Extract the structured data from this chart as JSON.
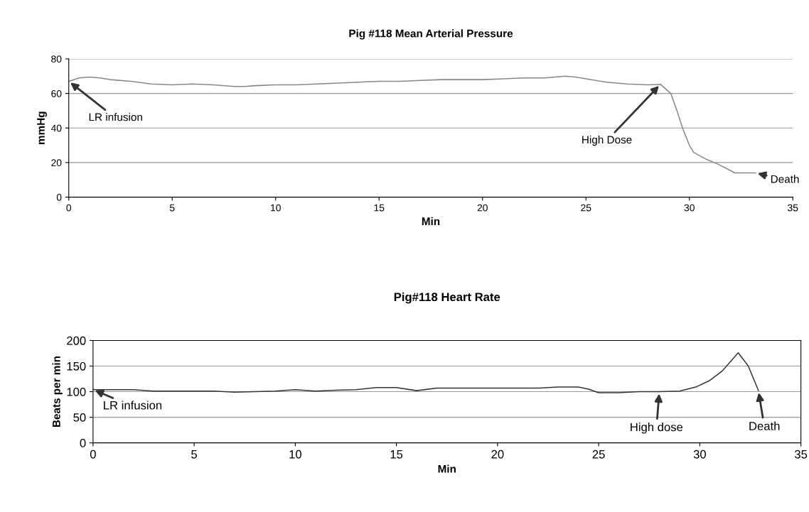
{
  "chart_data": [
    {
      "type": "line",
      "title": "Pig #118 Mean Arterial Pressure",
      "xlabel": "Min",
      "ylabel": "mmHg",
      "x": [
        0,
        0.5,
        1,
        1.5,
        2,
        3,
        4,
        5,
        6,
        7,
        8,
        8.5,
        9,
        10,
        11,
        12,
        13,
        14,
        15,
        16,
        17,
        18,
        19,
        20,
        21,
        22,
        23,
        24,
        24.5,
        25,
        26,
        27,
        28,
        28.6,
        29.1,
        29.4,
        29.7,
        30,
        30.2,
        30.8,
        31.4,
        32.2,
        32.6,
        33.2
      ],
      "series": [
        {
          "color": "#888888",
          "values": [
            67,
            69,
            69.5,
            69,
            68,
            67,
            65.5,
            65,
            65.5,
            65,
            64,
            64,
            64.5,
            65,
            65,
            65.5,
            66,
            66.5,
            67,
            67,
            67.5,
            68,
            68,
            68,
            68.5,
            69,
            69,
            70,
            69.5,
            68.5,
            66.5,
            65.5,
            65,
            65.3,
            60,
            50,
            39,
            30,
            26,
            22,
            19,
            14,
            14,
            14
          ]
        }
      ],
      "xlim": [
        0,
        35
      ],
      "xticks": [
        0,
        5,
        10,
        15,
        20,
        25,
        30,
        35
      ],
      "ylim": [
        0,
        80
      ],
      "yticks": [
        0,
        20,
        40,
        60,
        80
      ],
      "grid": "y",
      "annotations": [
        {
          "text": "LR infusion",
          "x": 0,
          "y": 67
        },
        {
          "text": "High Dose",
          "x": 28.6,
          "y": 65.3
        },
        {
          "text": "Death",
          "x": 33.2,
          "y": 14
        }
      ]
    },
    {
      "type": "line",
      "title": "Pig#118 Heart Rate",
      "xlabel": "Min",
      "ylabel": "Beats per min",
      "x": [
        0,
        1,
        2,
        3,
        4,
        5,
        6,
        7,
        8,
        9,
        10,
        11,
        12,
        13,
        14,
        15,
        16,
        17,
        18,
        19,
        20,
        21,
        22,
        23,
        24,
        24.5,
        25,
        26,
        27,
        28,
        29,
        29.8,
        30.5,
        31.1,
        31.5,
        31.9,
        32.4,
        32.9
      ],
      "series": [
        {
          "color": "#333333",
          "values": [
            104,
            104,
            104,
            101,
            101,
            101,
            101,
            99,
            100,
            101,
            104,
            101,
            103,
            104,
            108,
            108,
            102,
            107,
            107,
            107,
            107,
            107,
            107,
            109,
            109,
            105,
            98,
            98,
            100,
            100,
            101,
            109,
            122,
            140,
            158,
            176,
            150,
            102
          ]
        }
      ],
      "xlim": [
        0,
        35
      ],
      "xticks": [
        0,
        5,
        10,
        15,
        20,
        25,
        30,
        35
      ],
      "ylim": [
        0,
        200
      ],
      "yticks": [
        0,
        50,
        100,
        150,
        200
      ],
      "grid": "y",
      "annotations": [
        {
          "text": "LR infusion",
          "x": 0,
          "y": 104
        },
        {
          "text": "High dose",
          "x": 28,
          "y": 100
        },
        {
          "text": "Death",
          "x": 32.9,
          "y": 102
        }
      ]
    }
  ]
}
